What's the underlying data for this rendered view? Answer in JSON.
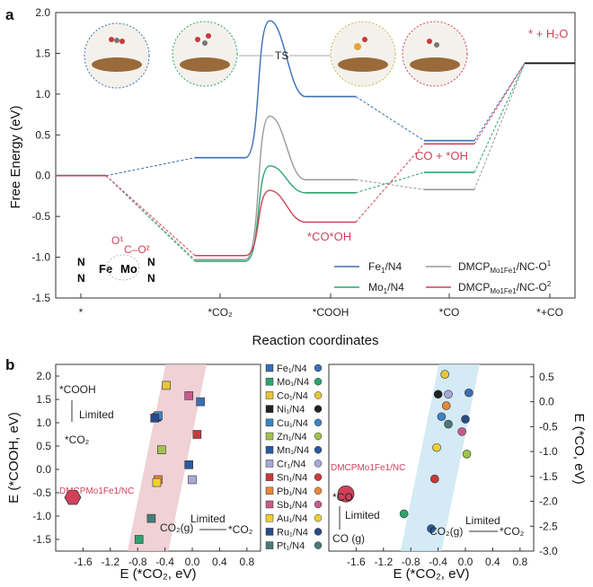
{
  "chart_data": [
    {
      "panel_label": "a",
      "type": "line",
      "xlabel": "Reaction coordinates",
      "ylabel": "Free Energy (eV)",
      "ylim": [
        -1.5,
        2.0
      ],
      "yticks": [
        "2.0",
        "1.5",
        "1.0",
        "0.5",
        "0.0",
        "-0.5",
        "-1.0",
        "-1.5"
      ],
      "categories": [
        "*",
        "*CO2",
        "*COOH",
        "*CO",
        "*+CO"
      ],
      "category_labels": [
        "*",
        "*CO₂",
        "*COOH",
        "*CO",
        "*+CO"
      ],
      "series": [
        {
          "name": "Fe₁/N4",
          "color": "#3a6fb5",
          "states": [
            {
              "x": 0,
              "y": 0.0
            },
            {
              "x": 1,
              "y": 0.22
            },
            {
              "x": 2,
              "y": 0.97
            },
            {
              "x": 3,
              "y": 0.43
            },
            {
              "x": 4,
              "y": 1.38
            }
          ],
          "ts": [
            1.45,
            1.9
          ]
        },
        {
          "name": "Mo₁/N4",
          "color": "#2aa56e",
          "states": [
            {
              "x": 0,
              "y": 0.0
            },
            {
              "x": 1,
              "y": -1.05
            },
            {
              "x": 2,
              "y": -0.21
            },
            {
              "x": 3,
              "y": 0.04
            },
            {
              "x": 4,
              "y": 1.38
            }
          ],
          "ts": [
            1.45,
            0.12
          ]
        },
        {
          "name": "DMCPMo1Fe1/NC-O¹",
          "color": "#9a9a9a",
          "states": [
            {
              "x": 0,
              "y": 0.0
            },
            {
              "x": 1,
              "y": -1.03
            },
            {
              "x": 2,
              "y": -0.05
            },
            {
              "x": 3,
              "y": -0.17
            },
            {
              "x": 4,
              "y": 1.38
            }
          ],
          "ts": [
            1.45,
            0.73
          ]
        },
        {
          "name": "DMCPMo1Fe1/NC-O²",
          "color": "#d0425a",
          "states": [
            {
              "x": 0,
              "y": 0.0
            },
            {
              "x": 1,
              "y": -0.98
            },
            {
              "x": 2,
              "y": -0.57
            },
            {
              "x": 3,
              "y": 0.39
            },
            {
              "x": 4,
              "y": 1.38
            }
          ],
          "ts": [
            1.45,
            -0.18
          ]
        }
      ],
      "annotations": {
        "ts": "TS",
        "h2o": "* + H₂O",
        "co_oh": "CO + *OH",
        "co_ohstar": "*CO*OH"
      },
      "inset_labels": {
        "o1": "O¹",
        "o2": "C–O²",
        "fe": "Fe",
        "mo": "Mo",
        "n": "N"
      },
      "legend": {
        "placement": "bottom-right",
        "entries": [
          "Fe₁/N4",
          "Mo₁/N4",
          "DMCPMo1Fe1/NC-O¹",
          "DMCPMo1Fe1/NC-O²"
        ]
      }
    },
    {
      "panel_label": "b",
      "type": "scatter",
      "xlabel": "E (*CO₂, eV)",
      "ylabel": "E (*COOH, eV)",
      "xlim": [
        -2.0,
        1.0
      ],
      "ylim": [
        -1.75,
        2.25
      ],
      "xticks": [
        "-1.6",
        "-1.2",
        "-0.8",
        "-0.4",
        "0.0",
        "0.4",
        "0.8"
      ],
      "yticks": [
        "2.0",
        "1.5",
        "1.0",
        "0.5",
        "0.0",
        "-0.5",
        "-1.0",
        "-1.5"
      ],
      "marker": "square",
      "points": [
        {
          "name": "Fe₁/N4",
          "x": 0.12,
          "y": 1.45,
          "color": "#3a6fb5"
        },
        {
          "name": "Mo₁/N4",
          "x": -0.78,
          "y": -1.5,
          "color": "#2aa56e"
        },
        {
          "name": "Co₁/N4",
          "x": -0.38,
          "y": 1.8,
          "color": "#e8c43c"
        },
        {
          "name": "Ni₁/N4",
          "x": -0.52,
          "y": 1.12,
          "color": "#222222"
        },
        {
          "name": "Cu₁/N4",
          "x": -0.5,
          "y": 1.15,
          "color": "#3c82c4"
        },
        {
          "name": "Zn₁/N4",
          "x": -0.45,
          "y": 0.42,
          "color": "#a0c44a"
        },
        {
          "name": "Mn₁/N4",
          "x": -0.05,
          "y": 0.1,
          "color": "#2a5ba0"
        },
        {
          "name": "Cr₁/N4",
          "x": 0.0,
          "y": -0.22,
          "color": "#a8a8d8"
        },
        {
          "name": "Sn₁/N4",
          "x": 0.07,
          "y": 0.75,
          "color": "#c83a3a"
        },
        {
          "name": "Pb₁/N4",
          "x": -0.5,
          "y": -0.22,
          "color": "#e8883a"
        },
        {
          "name": "Sb₁/N4",
          "x": -0.05,
          "y": 1.58,
          "color": "#c85a8a"
        },
        {
          "name": "Au₁/N4",
          "x": -0.52,
          "y": -0.28,
          "color": "#f0d030"
        },
        {
          "name": "Ru₁/N4",
          "x": -0.55,
          "y": 1.1,
          "color": "#2a4a8a"
        },
        {
          "name": "Pt₁/N4",
          "x": -0.6,
          "y": -1.05,
          "color": "#4a7a7a"
        },
        {
          "name": "DMCP",
          "x": -1.75,
          "y": -0.6,
          "color": "#d0425a"
        }
      ],
      "annotations": {
        "cooh": "*COOH",
        "limited": "Limited",
        "co2": "*CO₂",
        "dmcp": "DMCPMo1Fe1/NC",
        "co2g": "CO₂(g)",
        "limited2": "Limited",
        "co2star": "*CO₂"
      }
    },
    {
      "type": "scatter",
      "xlabel": "E (*CO₂, eV)",
      "ylabel": "E (*CO, eV)",
      "xlim": [
        -2.0,
        1.0
      ],
      "ylim": [
        -3.0,
        0.75
      ],
      "xticks": [
        "-1.6",
        "-1.2",
        "-0.8",
        "-0.4",
        "0.0",
        "0.4",
        "0.8"
      ],
      "yticks": [
        "0.5",
        "0.0",
        "-0.5",
        "-1.0",
        "-1.5",
        "-2.0",
        "-2.5",
        "-3.0"
      ],
      "marker": "circle",
      "points": [
        {
          "name": "Fe₁/N4",
          "x": 0.05,
          "y": 0.18,
          "color": "#3a6fb5"
        },
        {
          "name": "Mo₁/N4",
          "x": -0.9,
          "y": -2.25,
          "color": "#2aa56e"
        },
        {
          "name": "Co₁/N4",
          "x": -0.3,
          "y": 0.55,
          "color": "#e8c43c"
        },
        {
          "name": "Ni₁/N4",
          "x": -0.4,
          "y": 0.15,
          "color": "#222222"
        },
        {
          "name": "Cu₁/N4",
          "x": -0.35,
          "y": -0.3,
          "color": "#3c82c4"
        },
        {
          "name": "Zn₁/N4",
          "x": 0.02,
          "y": -1.05,
          "color": "#a0c44a"
        },
        {
          "name": "Mn₁/N4",
          "x": -0.5,
          "y": -2.55,
          "color": "#2a5ba0"
        },
        {
          "name": "Cr₁/N4",
          "x": -0.25,
          "y": 0.15,
          "color": "#a8a8d8"
        },
        {
          "name": "Sn₁/N4",
          "x": -0.45,
          "y": -1.55,
          "color": "#c83a3a"
        },
        {
          "name": "Pb₁/N4",
          "x": -0.28,
          "y": -0.08,
          "color": "#e8883a"
        },
        {
          "name": "Sb₁/N4",
          "x": -0.05,
          "y": -0.6,
          "color": "#c85a8a"
        },
        {
          "name": "Au₁/N4",
          "x": -0.42,
          "y": -0.92,
          "color": "#f0d030"
        },
        {
          "name": "Ru₁/N4",
          "x": 0.0,
          "y": -0.35,
          "color": "#2a4a8a"
        },
        {
          "name": "Pt₁/N4",
          "x": -0.25,
          "y": -0.45,
          "color": "#4a7a7a"
        },
        {
          "name": "DMCP",
          "x": -1.75,
          "y": -1.85,
          "color": "#d0425a"
        }
      ],
      "annotations": {
        "dmcp": "DMCPMo1Fe1/NC",
        "co": "*CO",
        "limited": "Limited",
        "cog": "CO (g)",
        "co2g": "CO₂(g)",
        "limited2": "Limited",
        "co2star": "*CO₂"
      }
    }
  ],
  "legend_b": [
    "Fe₁/N4",
    "Mo₁/N4",
    "Co₁/N4",
    "Ni₁/N4",
    "Cu₁/N4",
    "Zn₁/N4",
    "Mn₁/N4",
    "Cr₁/N4",
    "Sn₁/N4",
    "Pb₁/N4",
    "Sb₁/N4",
    "Au₁/N4",
    "Ru₁/N4",
    "Pt₁/N4"
  ],
  "legend_b_colors": [
    "#3a6fb5",
    "#2aa56e",
    "#e8c43c",
    "#222222",
    "#3c82c4",
    "#a0c44a",
    "#2a5ba0",
    "#a8a8d8",
    "#c83a3a",
    "#e8883a",
    "#c85a8a",
    "#f0d030",
    "#2a4a8a",
    "#4a7a7a"
  ],
  "colors": {
    "band_pink": "#ecc9cf",
    "band_blue": "#cde6f3",
    "accent": "#d0425a"
  }
}
